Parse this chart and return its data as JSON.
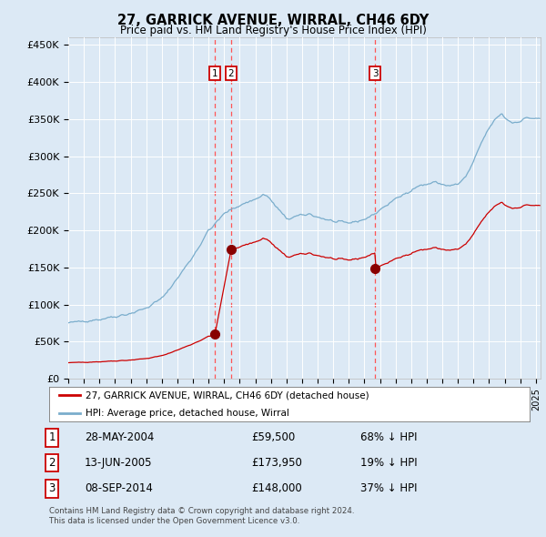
{
  "title": "27, GARRICK AVENUE, WIRRAL, CH46 6DY",
  "subtitle": "Price paid vs. HM Land Registry's House Price Index (HPI)",
  "bg_color": "#dce9f5",
  "plot_bg_color": "#dce9f5",
  "white_bg": "#ffffff",
  "red_line_color": "#cc0000",
  "blue_line_color": "#7aadcc",
  "dashed_line_color": "#ff5555",
  "marker_color": "#880000",
  "legend_label_red": "27, GARRICK AVENUE, WIRRAL, CH46 6DY (detached house)",
  "legend_label_blue": "HPI: Average price, detached house, Wirral",
  "ylim": [
    0,
    460000
  ],
  "yticks": [
    0,
    50000,
    100000,
    150000,
    200000,
    250000,
    300000,
    350000,
    400000,
    450000
  ],
  "ytick_labels": [
    "£0",
    "£50K",
    "£100K",
    "£150K",
    "£200K",
    "£250K",
    "£300K",
    "£350K",
    "£400K",
    "£450K"
  ],
  "sale1_date": 2004.41,
  "sale1_price": 59500,
  "sale1_label": "1",
  "sale1_text": "28-MAY-2004",
  "sale1_price_text": "£59,500",
  "sale1_pct": "68% ↓ HPI",
  "sale2_date": 2005.45,
  "sale2_price": 173950,
  "sale2_label": "2",
  "sale2_text": "13-JUN-2005",
  "sale2_price_text": "£173,950",
  "sale2_pct": "19% ↓ HPI",
  "sale3_date": 2014.68,
  "sale3_price": 148000,
  "sale3_label": "3",
  "sale3_text": "08-SEP-2014",
  "sale3_price_text": "£148,000",
  "sale3_pct": "37% ↓ HPI",
  "footnote1": "Contains HM Land Registry data © Crown copyright and database right 2024.",
  "footnote2": "This data is licensed under the Open Government Licence v3.0."
}
